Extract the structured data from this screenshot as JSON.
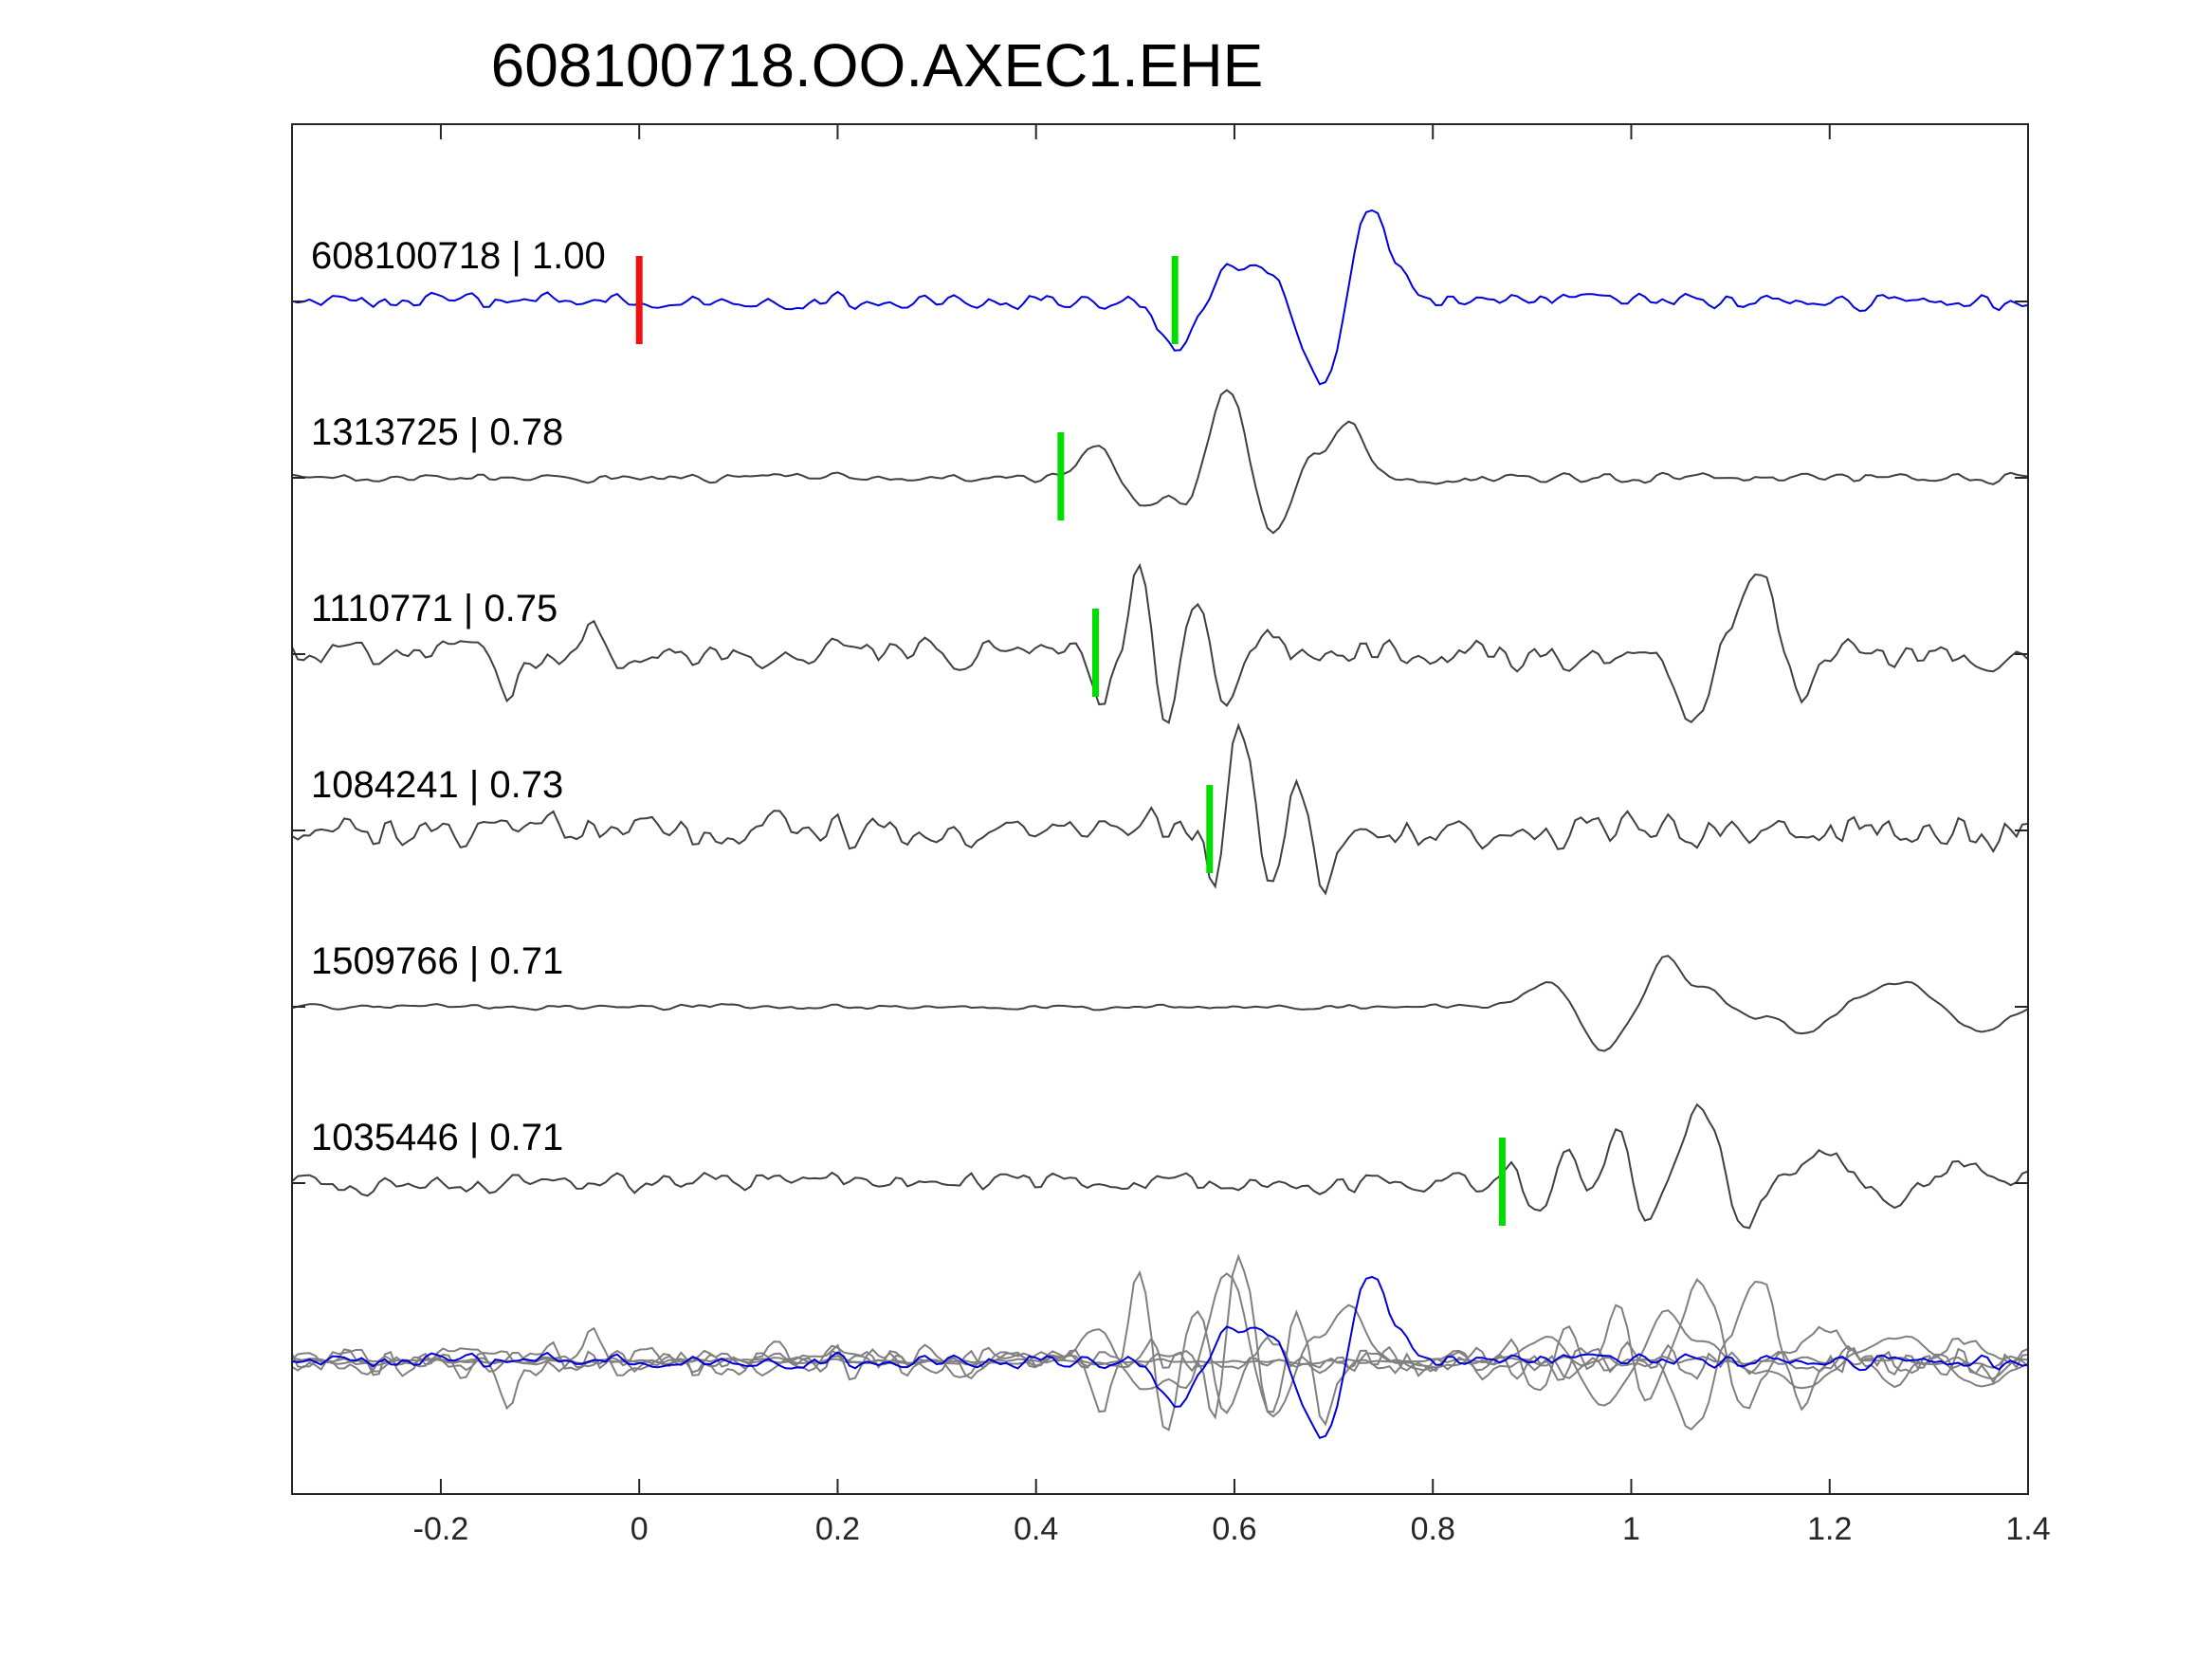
{
  "chart_data": {
    "type": "line",
    "title": "608100718.OO.AXEC1.EHE",
    "xlabel": "",
    "ylabel": "",
    "xlim": [
      -0.35,
      1.4
    ],
    "xticks": [
      -0.2,
      0,
      0.2,
      0.4,
      0.6,
      0.8,
      1,
      1.2,
      1.4
    ],
    "xtick_labels": [
      "-0.2",
      "0",
      "0.2",
      "0.4",
      "0.6",
      "0.8",
      "1",
      "1.2",
      "1.4"
    ],
    "grid": false,
    "colors": {
      "master": "#0000dd",
      "trace": "#404040",
      "stack_trace": "#808080",
      "master_pick": "#ee1111",
      "arrival_pick": "#00dd00",
      "axes": "#262626"
    },
    "series": [
      {
        "name": "608100718 | 1.00",
        "is_master": true,
        "label": "608100718 | 1.00",
        "pick_master": 0.0,
        "pick": 0.54,
        "noise": 0.07,
        "events": [
          {
            "t": 0.545,
            "a": -0.55,
            "w": 0.02
          },
          {
            "t": 0.6,
            "a": 0.35,
            "w": 0.03
          },
          {
            "t": 0.645,
            "a": 0.15,
            "w": 0.02
          },
          {
            "t": 0.69,
            "a": -0.85,
            "w": 0.022
          },
          {
            "t": 0.735,
            "a": 1.0,
            "w": 0.018
          },
          {
            "t": 0.77,
            "a": 0.1,
            "w": 0.015
          }
        ]
      },
      {
        "name": "1313725 | 0.78",
        "label": "1313725 | 0.78",
        "pick": 0.425,
        "noise": 0.045,
        "events": [
          {
            "t": 0.465,
            "a": 0.4,
            "w": 0.02
          },
          {
            "t": 0.5,
            "a": -0.35,
            "w": 0.018
          },
          {
            "t": 0.555,
            "a": -0.4,
            "w": 0.018
          },
          {
            "t": 0.595,
            "a": 1.0,
            "w": 0.022
          },
          {
            "t": 0.635,
            "a": -0.75,
            "w": 0.018
          },
          {
            "t": 0.675,
            "a": 0.2,
            "w": 0.015
          },
          {
            "t": 0.715,
            "a": 0.55,
            "w": 0.018
          }
        ]
      },
      {
        "name": "1110771 | 0.75",
        "label": "1110771 | 0.75",
        "pick": 0.46,
        "noise": 0.13,
        "events": [
          {
            "t": -0.13,
            "a": -0.35,
            "w": 0.01
          },
          {
            "t": -0.05,
            "a": 0.3,
            "w": 0.01
          },
          {
            "t": 0.465,
            "a": -0.55,
            "w": 0.01
          },
          {
            "t": 0.505,
            "a": 1.0,
            "w": 0.011
          },
          {
            "t": 0.53,
            "a": -0.7,
            "w": 0.01
          },
          {
            "t": 0.565,
            "a": 0.6,
            "w": 0.01
          },
          {
            "t": 0.59,
            "a": -0.5,
            "w": 0.01
          },
          {
            "t": 0.63,
            "a": 0.3,
            "w": 0.01
          },
          {
            "t": 1.06,
            "a": -0.75,
            "w": 0.015
          },
          {
            "t": 1.13,
            "a": 0.9,
            "w": 0.018
          },
          {
            "t": 1.17,
            "a": -0.5,
            "w": 0.015
          }
        ]
      },
      {
        "name": "1084241 | 0.73",
        "label": "1084241 | 0.73",
        "pick": 0.575,
        "noise": 0.17,
        "events": [
          {
            "t": 0.58,
            "a": -0.5,
            "w": 0.01
          },
          {
            "t": 0.605,
            "a": 1.0,
            "w": 0.012
          },
          {
            "t": 0.635,
            "a": -0.55,
            "w": 0.01
          },
          {
            "t": 0.665,
            "a": 0.5,
            "w": 0.01
          },
          {
            "t": 0.69,
            "a": -0.5,
            "w": 0.01
          }
        ]
      },
      {
        "name": "1509766 | 0.71",
        "label": "1509766 | 0.71",
        "noise": 0.025,
        "events": [
          {
            "t": 0.92,
            "a": 0.25,
            "w": 0.025
          },
          {
            "t": 0.97,
            "a": -0.5,
            "w": 0.02
          },
          {
            "t": 1.035,
            "a": 0.55,
            "w": 0.015
          },
          {
            "t": 1.075,
            "a": 0.2,
            "w": 0.015
          },
          {
            "t": 1.12,
            "a": -0.1,
            "w": 0.015
          },
          {
            "t": 1.175,
            "a": -0.3,
            "w": 0.02
          },
          {
            "t": 1.27,
            "a": 0.25,
            "w": 0.03
          },
          {
            "t": 1.35,
            "a": -0.25,
            "w": 0.025
          }
        ]
      },
      {
        "name": "1035446 | 0.71",
        "label": "1035446 | 0.71",
        "pick": 0.87,
        "noise": 0.1,
        "events": [
          {
            "t": 0.88,
            "a": 0.25,
            "w": 0.01
          },
          {
            "t": 0.905,
            "a": -0.4,
            "w": 0.012
          },
          {
            "t": 0.935,
            "a": 0.4,
            "w": 0.012
          },
          {
            "t": 0.965,
            "a": -0.25,
            "w": 0.012
          },
          {
            "t": 0.985,
            "a": 0.7,
            "w": 0.014
          },
          {
            "t": 1.015,
            "a": -0.45,
            "w": 0.013
          },
          {
            "t": 1.07,
            "a": 0.85,
            "w": 0.016
          },
          {
            "t": 1.115,
            "a": -0.5,
            "w": 0.014
          },
          {
            "t": 1.2,
            "a": 0.35,
            "w": 0.02
          },
          {
            "t": 1.26,
            "a": -0.25,
            "w": 0.02
          },
          {
            "t": 1.32,
            "a": 0.2,
            "w": 0.02
          }
        ]
      }
    ]
  }
}
